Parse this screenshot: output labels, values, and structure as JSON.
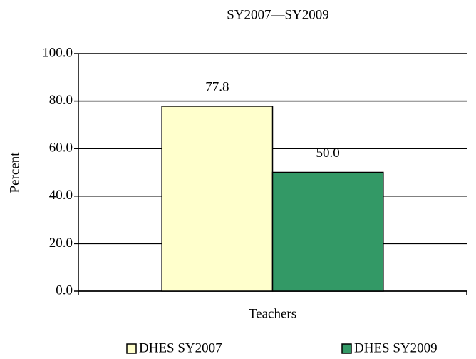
{
  "chart_data": {
    "type": "bar",
    "title": "SY2007—SY2009",
    "y_label": "Percent",
    "categories": [
      "Teachers"
    ],
    "series": [
      {
        "name": "DHES SY2007",
        "color": "#ffffcc",
        "values": [
          77.8
        ],
        "value_labels": [
          "77.8"
        ]
      },
      {
        "name": "DHES SY2009",
        "color": "#339966",
        "values": [
          50
        ],
        "value_labels": [
          "50.0"
        ]
      }
    ],
    "ylim": [
      0,
      100
    ],
    "yticks": [
      {
        "value": 0,
        "label": "0.0"
      },
      {
        "value": 20,
        "label": "20.0"
      },
      {
        "value": 40,
        "label": "40.0"
      },
      {
        "value": 60,
        "label": "60.0"
      },
      {
        "value": 80,
        "label": "80.0"
      },
      {
        "value": 100,
        "label": "100.0"
      }
    ],
    "grid": true,
    "legend": "bottom"
  }
}
